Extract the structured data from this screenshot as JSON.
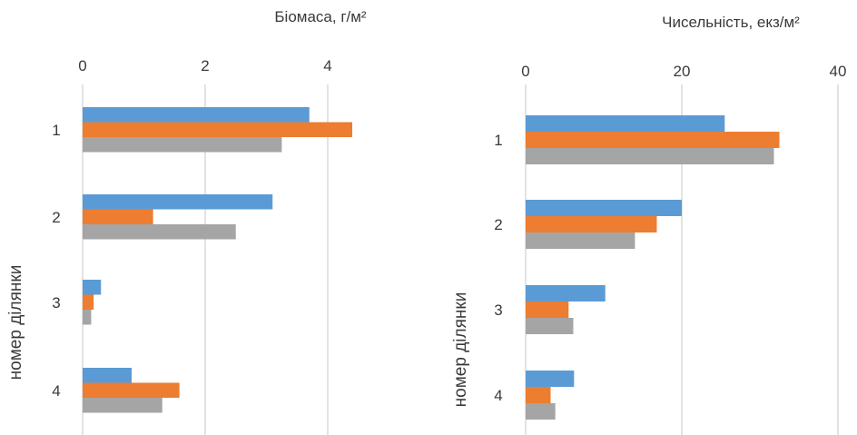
{
  "chart_data": [
    {
      "type": "bar",
      "orientation": "horizontal",
      "title": "Біомаса, г/м²",
      "ylabel": "номер ділянки",
      "categories": [
        "1",
        "2",
        "3",
        "4"
      ],
      "xlim": [
        0,
        4.5
      ],
      "xticks": [
        0,
        2,
        4
      ],
      "x_axis_position": "top",
      "grid": true,
      "series": [
        {
          "values": [
            3.7,
            3.1,
            0.3,
            0.8
          ]
        },
        {
          "values": [
            4.4,
            1.15,
            0.18,
            1.58
          ]
        },
        {
          "values": [
            3.25,
            2.5,
            0.14,
            1.3
          ]
        }
      ]
    },
    {
      "type": "bar",
      "orientation": "horizontal",
      "title": "Чисельність, екз/м²",
      "ylabel": "номер ділянки",
      "categories": [
        "1",
        "2",
        "3",
        "4"
      ],
      "xlim": [
        0,
        41
      ],
      "xticks": [
        0,
        20,
        40
      ],
      "x_axis_position": "top",
      "grid": true,
      "series": [
        {
          "values": [
            25.5,
            20,
            10.2,
            6.2
          ]
        },
        {
          "values": [
            32.5,
            16.8,
            5.5,
            3.2
          ]
        },
        {
          "values": [
            31.8,
            14,
            6.1,
            3.8
          ]
        }
      ]
    }
  ],
  "colors": {
    "series": [
      "#5b9bd5",
      "#ed7d31",
      "#a5a5a5"
    ],
    "grid": "#d4d4d4",
    "text": "#3a3a3a"
  }
}
